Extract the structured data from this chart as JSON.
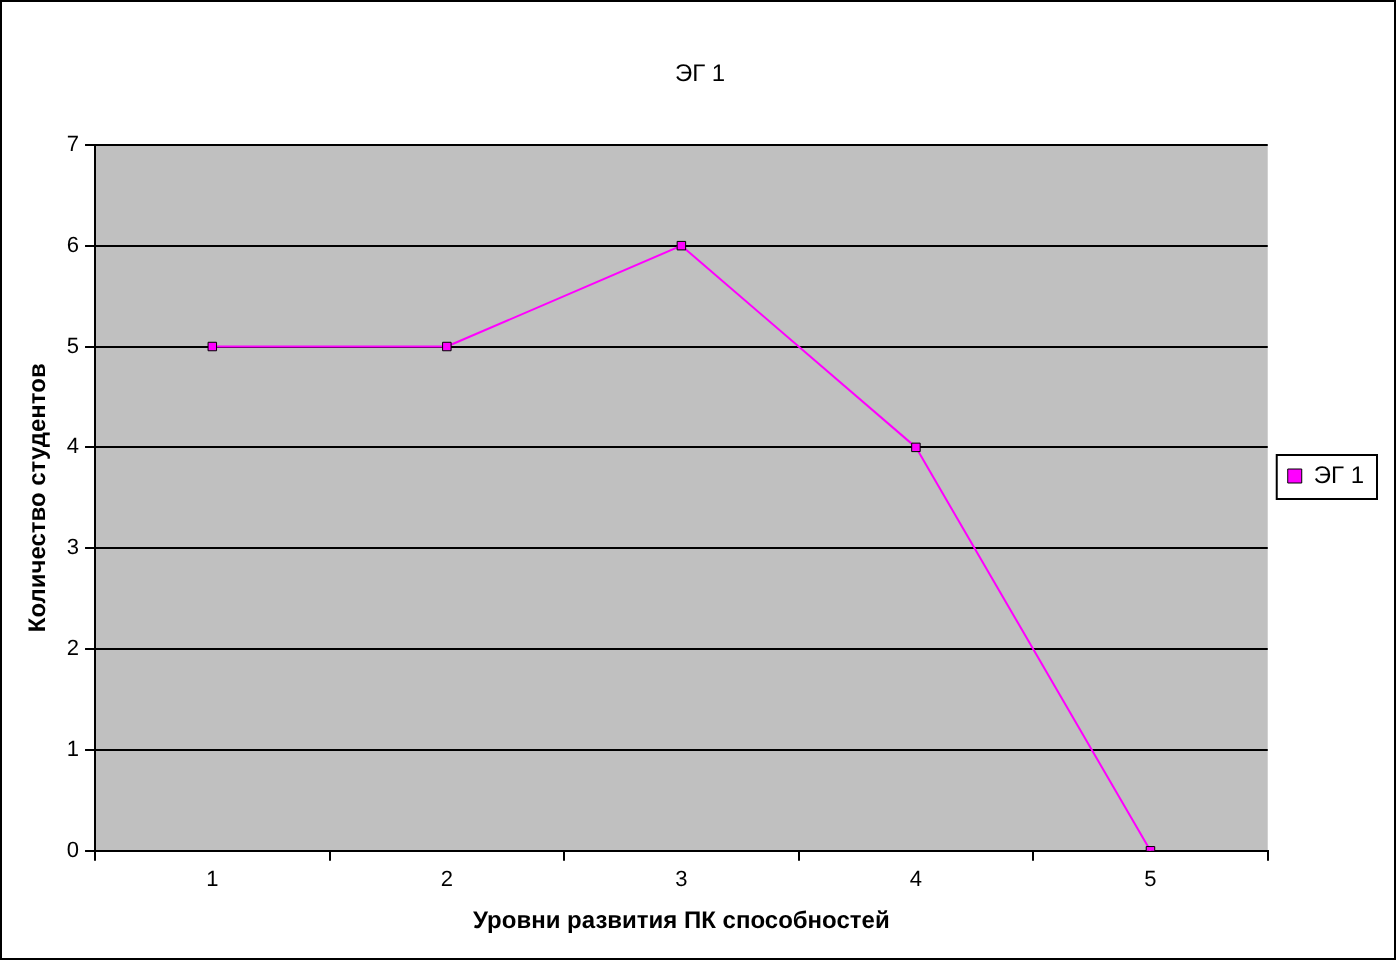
{
  "chart_data": {
    "type": "line",
    "title": "ЭГ 1",
    "xlabel": "Уровни развития ПК способностей",
    "ylabel": "Количество студентов",
    "categories": [
      "1",
      "2",
      "3",
      "4",
      "5"
    ],
    "series": [
      {
        "name": "ЭГ 1",
        "color": "#ff00ff",
        "values": [
          5,
          5,
          6,
          4,
          0
        ]
      }
    ],
    "ylim": [
      0,
      7
    ],
    "yticks": [
      0,
      1,
      2,
      3,
      4,
      5,
      6,
      7
    ],
    "grid": "y",
    "legend": "right",
    "marker": "square",
    "line_style": "solid"
  }
}
